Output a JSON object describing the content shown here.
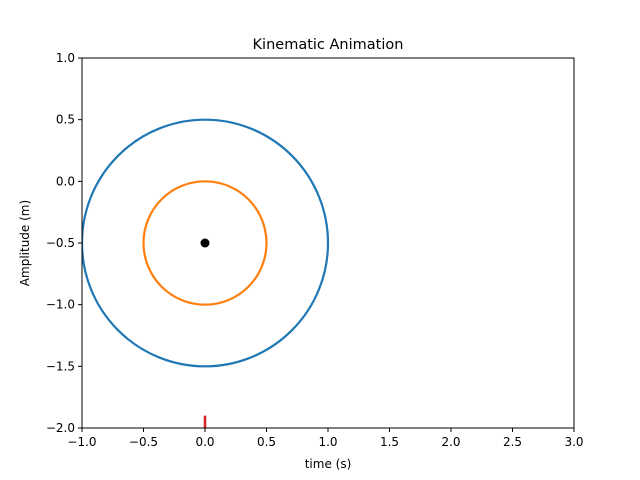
{
  "chart_data": {
    "type": "line",
    "title": "Kinematic Animation",
    "xlabel": "time (s)",
    "ylabel": "Amplitude (m)",
    "xlim": [
      -1.0,
      3.0
    ],
    "ylim": [
      -2.0,
      1.0
    ],
    "xticks": [
      -1.0,
      -0.5,
      0.0,
      0.5,
      1.0,
      1.5,
      2.0,
      2.5,
      3.0
    ],
    "xtick_labels": [
      "−1.0",
      "−0.5",
      "0.0",
      "0.5",
      "1.0",
      "1.5",
      "2.0",
      "2.5",
      "3.0"
    ],
    "yticks": [
      1.0,
      0.5,
      0.0,
      -0.5,
      -1.0,
      -1.5,
      -2.0
    ],
    "ytick_labels": [
      "1.0",
      "0.5",
      "0.0",
      "−0.5",
      "−1.0",
      "−1.5",
      "−2.0"
    ],
    "grid": false,
    "series": [
      {
        "kind": "circle",
        "center": [
          0.0,
          -0.5
        ],
        "radius": 1.0,
        "color": "#1f77b4"
      },
      {
        "kind": "circle",
        "center": [
          0.0,
          -0.5
        ],
        "radius": 0.5,
        "color": "#ff7f0e"
      },
      {
        "kind": "point",
        "x": 0.0,
        "y": -0.5,
        "color": "#000000"
      },
      {
        "kind": "segment",
        "x": [
          0.0,
          0.0
        ],
        "y": [
          -2.0,
          -1.9
        ],
        "color": "#d62728"
      }
    ]
  }
}
